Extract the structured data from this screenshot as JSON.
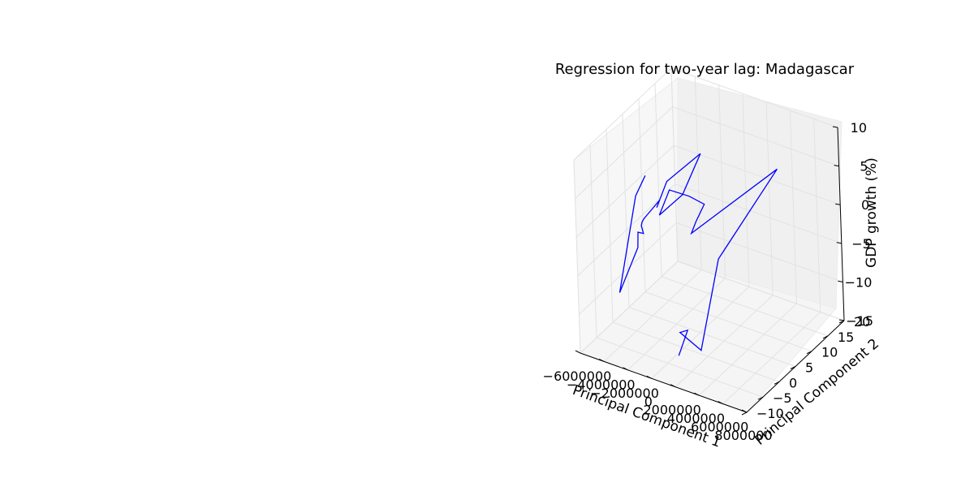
{
  "chart_data": {
    "type": "line",
    "projection": "3d",
    "title": "Regression for two-year lag: Madagascar",
    "xlabel": "Principal Component 1",
    "ylabel": "Principal Component 2",
    "zlabel": "GDP growth (%)",
    "xlim": [
      -6000000,
      8000000
    ],
    "ylim": [
      -10,
      20
    ],
    "zlim": [
      -15,
      10
    ],
    "xticks": [
      "−6000000",
      "−4000000",
      "−2000000",
      "0",
      "2000000",
      "4000000",
      "6000000",
      "8000000"
    ],
    "yticks": [
      "−10",
      "−5",
      "0",
      "5",
      "10",
      "15",
      "20"
    ],
    "zticks": [
      "−15",
      "−10",
      "−5",
      "0",
      "5",
      "10"
    ],
    "grid": true,
    "line_color": "#0000ff",
    "series": [
      {
        "x": [
          -4250000,
          -4550000,
          -3900000,
          -3650000,
          -3600000,
          -3700000,
          -3300000,
          -3500000,
          -3600000,
          -2800000,
          -2500000,
          -1000000,
          800000,
          300000,
          -300000,
          -800000,
          300000,
          700000,
          800000,
          1800000,
          7000000,
          4600000,
          4300000,
          3400000,
          3200000,
          3800000
        ],
        "y": [
          5,
          3,
          -5,
          0,
          0,
          2,
          0,
          1,
          2,
          4,
          2,
          0,
          4,
          0,
          -5,
          0,
          2,
          5,
          2,
          -3,
          5,
          -5,
          -10,
          -13,
          -10,
          -15
        ],
        "z": [
          3,
          1,
          -8,
          -4,
          -2,
          -3,
          -1,
          -1,
          -1,
          1,
          1,
          6,
          9,
          5,
          4,
          5,
          4,
          2,
          1,
          2,
          10,
          1,
          -9,
          -6,
          -7,
          -8
        ]
      }
    ]
  }
}
